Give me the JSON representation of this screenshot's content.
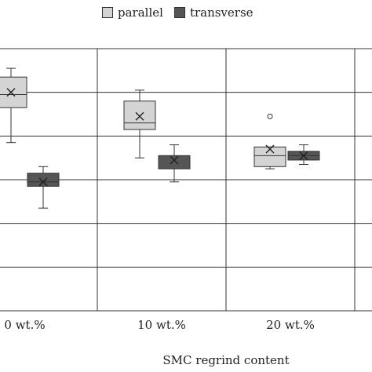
{
  "chart_data": {
    "type": "box",
    "xlabel": "SMC regrind content",
    "ylabel": "",
    "categories": [
      "0 wt.%",
      "10 wt.%",
      "20 wt.%"
    ],
    "legend_position": "top",
    "grid": true,
    "ylim": [
      0,
      6
    ],
    "series": [
      {
        "name": "parallel",
        "color": "#d4d4d4",
        "boxes": [
          {
            "min": 3.85,
            "q1": 4.65,
            "median": 4.95,
            "q3": 5.35,
            "max": 5.55,
            "mean": 5.0,
            "outliers": []
          },
          {
            "min": 3.5,
            "q1": 4.15,
            "median": 4.3,
            "q3": 4.8,
            "max": 5.05,
            "mean": 4.45,
            "outliers": [
              4.45
            ]
          },
          {
            "min": 3.25,
            "q1": 3.3,
            "median": 3.55,
            "q3": 3.75,
            "max": 3.75,
            "mean": 3.7,
            "outliers": [
              4.45
            ]
          }
        ]
      },
      {
        "name": "transverse",
        "color": "#555555",
        "boxes": [
          {
            "min": 2.35,
            "q1": 2.85,
            "median": 2.95,
            "q3": 3.15,
            "max": 3.3,
            "mean": 2.95,
            "outliers": []
          },
          {
            "min": 2.95,
            "q1": 3.25,
            "median": 3.55,
            "q3": 3.55,
            "max": 3.8,
            "mean": 3.45,
            "outliers": []
          },
          {
            "min": 3.35,
            "q1": 3.45,
            "median": 3.55,
            "q3": 3.65,
            "max": 3.8,
            "mean": 3.55,
            "outliers": []
          }
        ]
      }
    ]
  }
}
